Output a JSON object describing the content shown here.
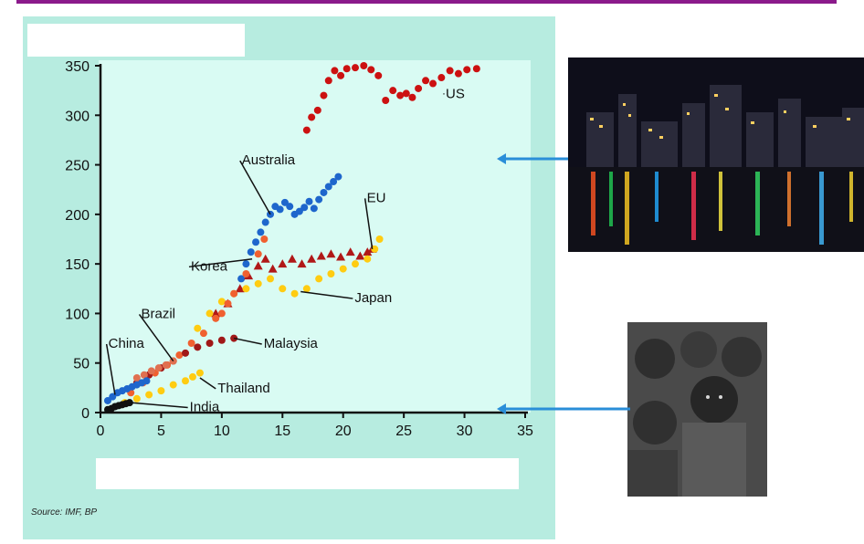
{
  "source_text": "Source: IMF, BP",
  "colors": {
    "panel_bg": "#b7ece0",
    "plot_bg": "#d9fbf3",
    "top_rule": "#8b1a8b",
    "arrow": "#2a8ed8"
  },
  "chart_data": {
    "type": "scatter",
    "title": "",
    "xlabel": "",
    "ylabel": "",
    "xlim": [
      0,
      35
    ],
    "ylim": [
      0,
      350
    ],
    "x_ticks": [
      "0",
      "5",
      "10",
      "15",
      "20",
      "25",
      "30",
      "35"
    ],
    "y_ticks": [
      "0",
      "50",
      "100",
      "150",
      "200",
      "250",
      "300",
      "350"
    ],
    "grid": false,
    "series": [
      {
        "name": "US",
        "color": "#cc1111",
        "marker": "circle",
        "x": [
          17.0,
          17.4,
          17.9,
          18.4,
          18.8,
          19.3,
          19.8,
          20.3,
          21.0,
          21.7,
          22.3,
          22.9,
          23.5,
          24.1,
          24.7,
          25.2,
          25.7,
          26.2,
          26.8,
          27.4,
          28.1,
          28.8,
          29.5,
          30.2,
          31.0
        ],
        "y": [
          285,
          298,
          305,
          320,
          335,
          345,
          340,
          347,
          348,
          350,
          346,
          340,
          315,
          325,
          320,
          322,
          318,
          327,
          335,
          332,
          338,
          345,
          342,
          346,
          347
        ]
      },
      {
        "name": "Australia",
        "color": "#1e66cc",
        "marker": "circle",
        "x": [
          11.6,
          12.0,
          12.4,
          12.8,
          13.2,
          13.6,
          14.0,
          14.4,
          14.8,
          15.2,
          15.6,
          16.0,
          16.4,
          16.8,
          17.2,
          17.6,
          18.0,
          18.4,
          18.8,
          19.2,
          19.6
        ],
        "y": [
          135,
          150,
          162,
          172,
          182,
          192,
          200,
          208,
          205,
          212,
          208,
          200,
          203,
          207,
          213,
          206,
          215,
          222,
          228,
          233,
          238
        ]
      },
      {
        "name": "EU",
        "color": "#b01818",
        "marker": "triangle",
        "x": [
          9.5,
          10.5,
          11.5,
          12.2,
          13.0,
          13.6,
          14.2,
          15.0,
          15.8,
          16.6,
          17.4,
          18.2,
          19.0,
          19.8,
          20.6,
          21.4,
          22.0,
          22.4
        ],
        "y": [
          100,
          110,
          125,
          138,
          148,
          155,
          145,
          150,
          155,
          150,
          155,
          158,
          160,
          157,
          162,
          158,
          162,
          165
        ]
      },
      {
        "name": "Japan",
        "color": "#ffcc11",
        "marker": "circle",
        "x": [
          8.0,
          9.0,
          10.0,
          11.0,
          12.0,
          13.0,
          14.0,
          15.0,
          16.0,
          17.0,
          18.0,
          19.0,
          20.0,
          21.0,
          22.0,
          22.6,
          23.0
        ],
        "y": [
          85,
          100,
          112,
          120,
          125,
          130,
          135,
          125,
          120,
          125,
          135,
          140,
          145,
          150,
          155,
          165,
          175
        ]
      },
      {
        "name": "Korea",
        "color": "#f06030",
        "marker": "circle",
        "x": [
          2.5,
          3.5,
          4.5,
          5.5,
          6.5,
          7.5,
          8.5,
          9.5,
          10.0,
          10.5,
          11.0,
          12.0,
          13.0,
          13.5
        ],
        "y": [
          20,
          30,
          40,
          48,
          58,
          70,
          80,
          95,
          100,
          110,
          120,
          140,
          160,
          175
        ]
      },
      {
        "name": "Malaysia",
        "color": "#a01818",
        "marker": "circle",
        "x": [
          3.0,
          4.0,
          5.0,
          6.0,
          7.0,
          8.0,
          9.0,
          10.0,
          11.0
        ],
        "y": [
          30,
          38,
          45,
          52,
          60,
          66,
          70,
          73,
          75
        ]
      },
      {
        "name": "Brazil",
        "color": "#e07050",
        "marker": "circle",
        "x": [
          3.0,
          3.6,
          4.2,
          4.8,
          5.4,
          6.0
        ],
        "y": [
          35,
          38,
          42,
          45,
          48,
          52
        ]
      },
      {
        "name": "China",
        "color": "#1e66cc",
        "marker": "circle",
        "x": [
          0.6,
          1.0,
          1.4,
          1.8,
          2.2,
          2.6,
          3.0,
          3.4,
          3.8
        ],
        "y": [
          12,
          16,
          20,
          22,
          24,
          26,
          28,
          30,
          32
        ]
      },
      {
        "name": "Thailand",
        "color": "#ffcc11",
        "marker": "circle",
        "x": [
          2.0,
          3.0,
          4.0,
          5.0,
          6.0,
          7.0,
          7.6,
          8.2
        ],
        "y": [
          10,
          14,
          18,
          22,
          28,
          32,
          36,
          40
        ]
      },
      {
        "name": "India",
        "color": "#111111",
        "marker": "circle",
        "x": [
          0.6,
          0.9,
          1.2,
          1.5,
          1.8,
          2.1,
          2.4
        ],
        "y": [
          3,
          4,
          6,
          7,
          8,
          9,
          10
        ]
      }
    ],
    "annotations": [
      {
        "text": "US",
        "x": 28.3,
        "y": 322,
        "tx": 28.3,
        "ty": 322,
        "anchor": "start"
      },
      {
        "text": "Australia",
        "x": 14.0,
        "y": 200,
        "tx": 11.5,
        "ty": 255,
        "anchor": "start"
      },
      {
        "text": "EU",
        "x": 22.4,
        "y": 165,
        "tx": 21.8,
        "ty": 217,
        "anchor": "start"
      },
      {
        "text": "Korea",
        "x": 12.5,
        "y": 155,
        "tx": 7.3,
        "ty": 148,
        "anchor": "start"
      },
      {
        "text": "Japan",
        "x": 16.5,
        "y": 122,
        "tx": 20.8,
        "ty": 116,
        "anchor": "start"
      },
      {
        "text": "Brazil",
        "x": 6.0,
        "y": 52,
        "tx": 3.2,
        "ty": 100,
        "anchor": "start"
      },
      {
        "text": "China",
        "x": 1.2,
        "y": 18,
        "tx": 0.5,
        "ty": 70,
        "anchor": "start"
      },
      {
        "text": "Malaysia",
        "x": 11.0,
        "y": 75,
        "tx": 13.3,
        "ty": 70,
        "anchor": "start"
      },
      {
        "text": "Thailand",
        "x": 8.2,
        "y": 35,
        "tx": 9.5,
        "ty": 25,
        "anchor": "start"
      },
      {
        "text": "India",
        "x": 2.5,
        "y": 10,
        "tx": 7.2,
        "ty": 6,
        "anchor": "start"
      }
    ]
  }
}
